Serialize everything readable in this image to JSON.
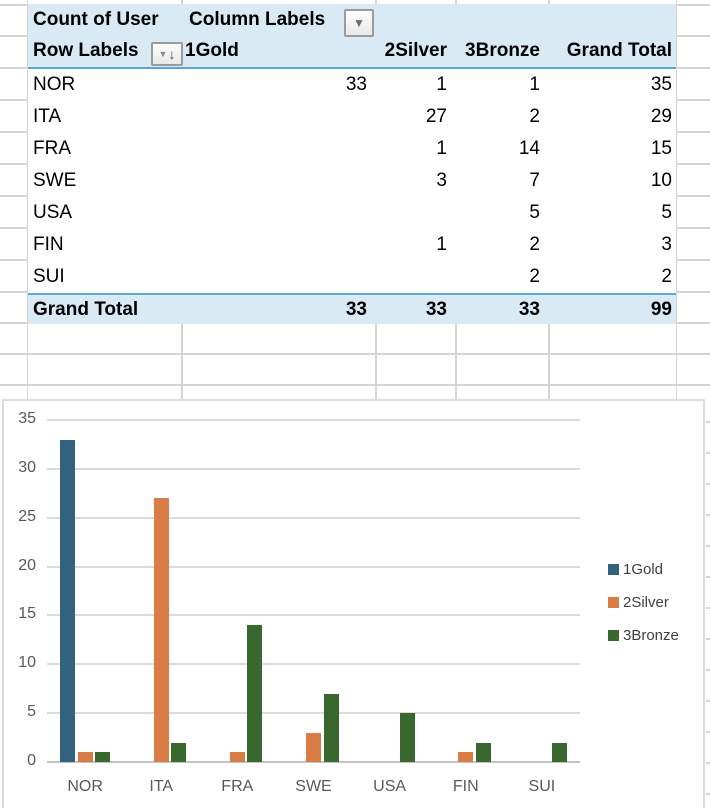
{
  "pivot": {
    "value_field_label": "Count of User",
    "column_field_label": "Column Labels",
    "row_field_label": "Row Labels",
    "column_headers": [
      "1Gold",
      "2Silver",
      "3Bronze",
      "Grand Total"
    ],
    "rows": [
      {
        "label": "NOR",
        "values": [
          "33",
          "1",
          "1",
          "35"
        ]
      },
      {
        "label": "ITA",
        "values": [
          "",
          "27",
          "2",
          "29"
        ]
      },
      {
        "label": "FRA",
        "values": [
          "",
          "1",
          "14",
          "15"
        ]
      },
      {
        "label": "SWE",
        "values": [
          "",
          "3",
          "7",
          "10"
        ]
      },
      {
        "label": "USA",
        "values": [
          "",
          "",
          "5",
          "5"
        ]
      },
      {
        "label": "FIN",
        "values": [
          "",
          "1",
          "2",
          "3"
        ]
      },
      {
        "label": "SUI",
        "values": [
          "",
          "",
          "2",
          "2"
        ]
      }
    ],
    "grand_total": {
      "label": "Grand Total",
      "values": [
        "33",
        "33",
        "33",
        "99"
      ]
    },
    "colors": {
      "header_fill": "#d9eaf5",
      "accent_border": "#5ba7da"
    }
  },
  "icons": {
    "column_dropdown": "▼",
    "row_dropdown": "▼",
    "sort_descending": "↓"
  },
  "chart_data": {
    "type": "bar",
    "title": "",
    "categories": [
      "NOR",
      "ITA",
      "FRA",
      "SWE",
      "USA",
      "FIN",
      "SUI"
    ],
    "series": [
      {
        "name": "1Gold",
        "color": "#31637f",
        "values": [
          33,
          0,
          0,
          0,
          0,
          0,
          0
        ]
      },
      {
        "name": "2Silver",
        "color": "#d97c45",
        "values": [
          1,
          27,
          1,
          3,
          0,
          1,
          0
        ]
      },
      {
        "name": "3Bronze",
        "color": "#38682e",
        "values": [
          1,
          2,
          14,
          7,
          5,
          2,
          2
        ]
      }
    ],
    "xlabel": "",
    "ylabel": "",
    "ylim": [
      0,
      35
    ],
    "ytick_step": 5,
    "grid": true,
    "legend_position": "right"
  }
}
